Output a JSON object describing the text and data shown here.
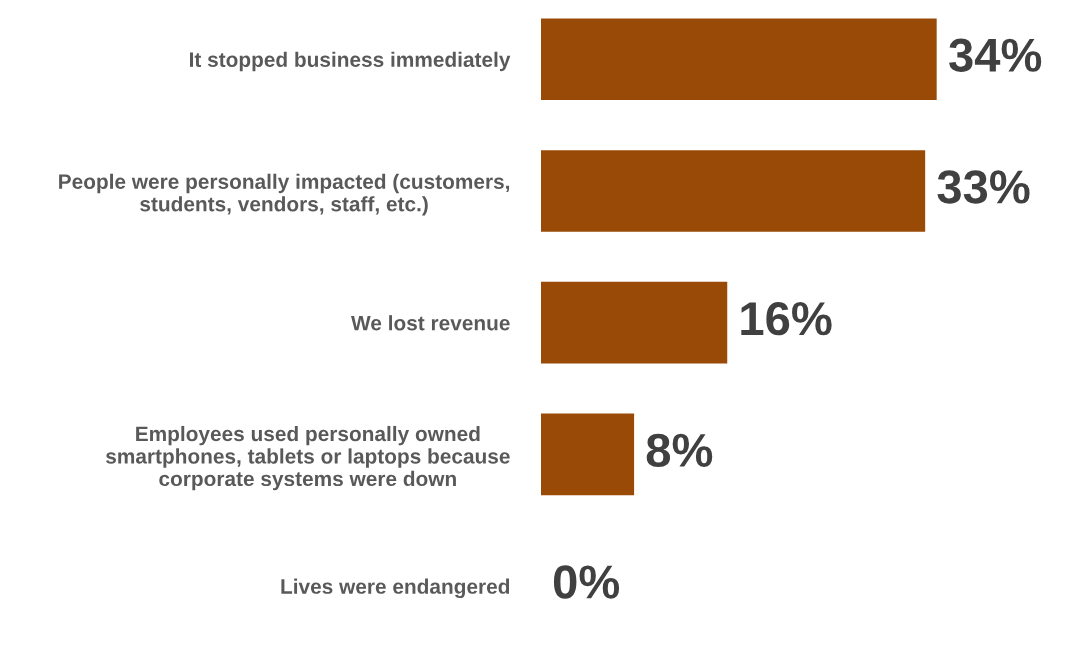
{
  "chart_data": {
    "type": "bar",
    "orientation": "horizontal",
    "categories": [
      "It stopped business immediately",
      "People were personally impacted (customers,\nstudents, vendors, staff, etc.)",
      "We lost revenue",
      "Employees used personally owned\nsmartphones, tablets or laptops because\ncorporate systems were down",
      "Lives were endangered"
    ],
    "values": [
      34,
      33,
      16,
      8,
      0
    ],
    "value_labels": [
      "34%",
      "33%",
      "16%",
      "8%",
      "0%"
    ],
    "color": "#9a4a07",
    "tick_labels": "y",
    "grid": false,
    "legend": false
  }
}
